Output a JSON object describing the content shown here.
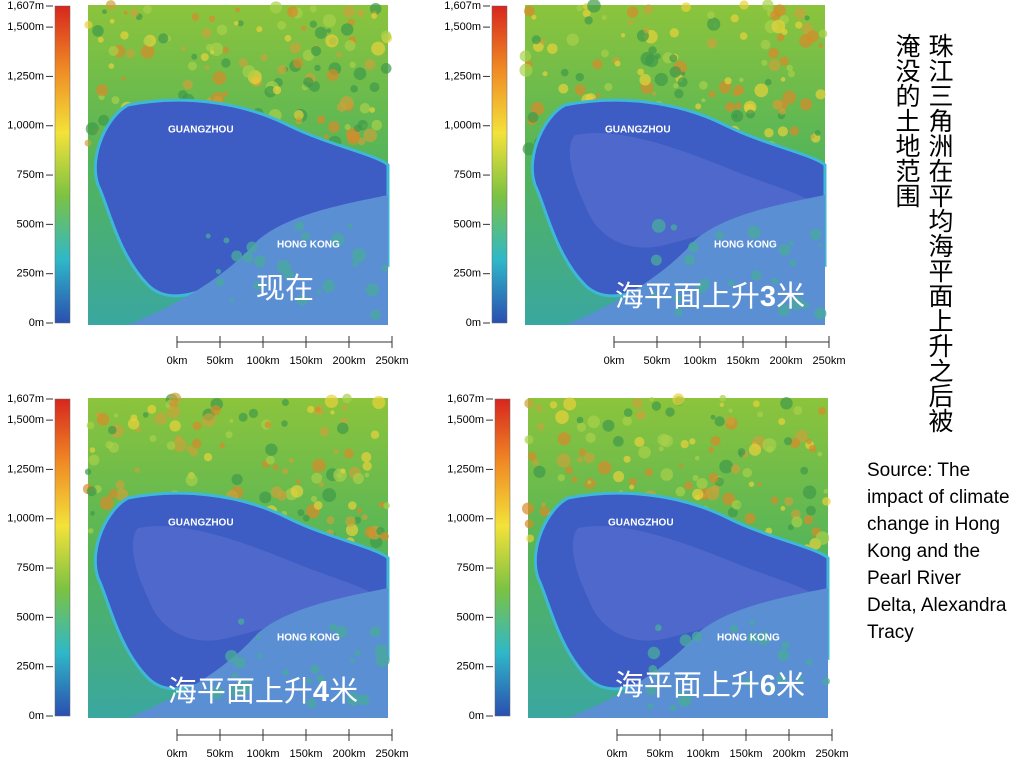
{
  "legend": {
    "ticks": [
      {
        "value": 1607,
        "label": "1,607m"
      },
      {
        "value": 1500,
        "label": "1,500m"
      },
      {
        "value": 1250,
        "label": "1,250m"
      },
      {
        "value": 1000,
        "label": "1,000m"
      },
      {
        "value": 750,
        "label": "750m"
      },
      {
        "value": 500,
        "label": "500m"
      },
      {
        "value": 250,
        "label": "250m"
      },
      {
        "value": 0,
        "label": "0m"
      }
    ]
  },
  "scale_bar": {
    "ticks": [
      {
        "value": 0,
        "label": "0km"
      },
      {
        "value": 50,
        "label": "50km"
      },
      {
        "value": 100,
        "label": "100km"
      },
      {
        "value": 150,
        "label": "150km"
      },
      {
        "value": 200,
        "label": "200km"
      },
      {
        "value": 250,
        "label": "250km"
      }
    ]
  },
  "cities": [
    "GUANGZHOU",
    "HONG KONG"
  ],
  "panels": [
    {
      "caption": {
        "text": "现在"
      }
    },
    {
      "caption": {
        "text": "海平面上升",
        "number": 3,
        "unit": "米"
      }
    },
    {
      "caption": {
        "text": "海平面上升",
        "number": 4,
        "unit": "米"
      }
    },
    {
      "caption": {
        "text": "海平面上升",
        "number": 6,
        "unit": "米"
      }
    }
  ],
  "title": "珠江三角洲在平均海平面上升之后被淹没的土地范围",
  "source": "Source: The impact of climate change in Hong Kong and the Pearl River Delta, Alexandra Tracy"
}
